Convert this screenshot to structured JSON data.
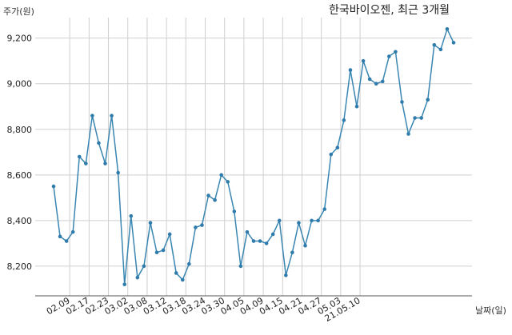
{
  "chart_data": {
    "type": "line",
    "title": "한국바이오젠, 최근 3개월",
    "ylabel": "주가(원)",
    "xlabel": "날짜(일)",
    "ylim": [
      8070,
      9290
    ],
    "yticks": [
      8200,
      8400,
      8600,
      8800,
      9000,
      9200
    ],
    "ytick_labels": [
      "8,200",
      "8,400",
      "8,600",
      "8,800",
      "9,000",
      "9,200"
    ],
    "grid": true,
    "xtick_labels": [
      "02.09",
      "02.17",
      "02.23",
      "03.02",
      "03.08",
      "03.12",
      "03.18",
      "03.24",
      "03.30",
      "04.05",
      "04.09",
      "04.15",
      "04.21",
      "04.27",
      "05.03",
      "21.05.10"
    ],
    "xtick_positions": [
      2.5,
      5.5,
      8.5,
      11.5,
      14.5,
      17.5,
      20.5,
      23.5,
      26.5,
      29.5,
      32.5,
      35.5,
      38.5,
      41.5,
      44.5,
      47.5
    ],
    "series": [
      {
        "color": "#3a86b2",
        "values": [
          8550,
          8330,
          8310,
          8350,
          8680,
          8650,
          8860,
          8740,
          8650,
          8860,
          8610,
          8120,
          8420,
          8150,
          8200,
          8390,
          8260,
          8270,
          8340,
          8170,
          8140,
          8210,
          8370,
          8380,
          8510,
          8490,
          8600,
          8570,
          8440,
          8200,
          8350,
          8310,
          8310,
          8300,
          8340,
          8400,
          8160,
          8260,
          8390,
          8290,
          8400,
          8400,
          8450,
          8690,
          8720,
          8840,
          9060,
          8900,
          9100,
          9020,
          9000,
          9010,
          9120,
          9140,
          8920,
          8780,
          8850,
          8850,
          8930,
          9170,
          9150,
          9240,
          9180
        ]
      }
    ]
  }
}
